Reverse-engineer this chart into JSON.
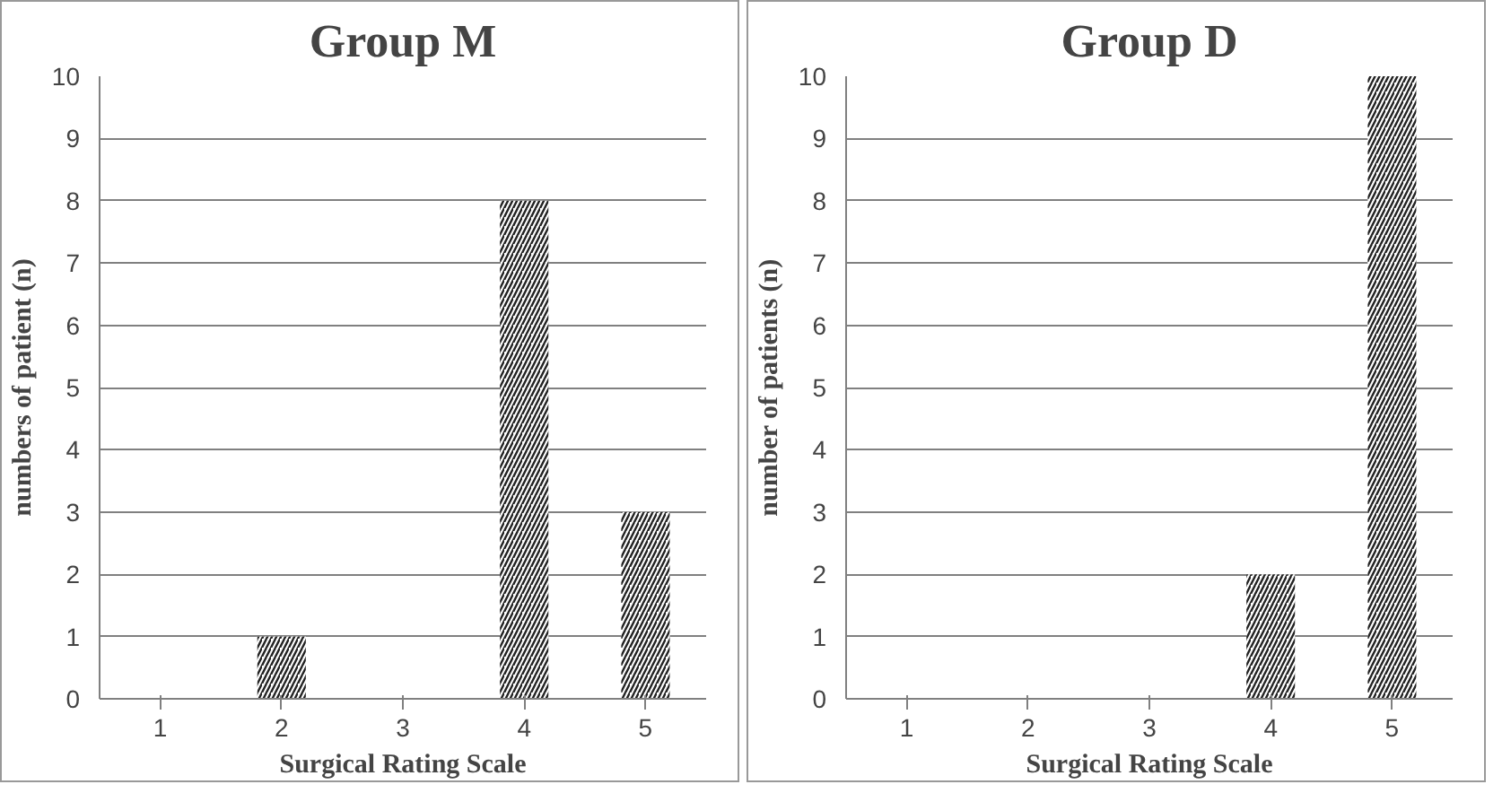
{
  "chart_data": [
    {
      "type": "bar",
      "title": "Group M",
      "xlabel": "Surgical Rating Scale",
      "ylabel": "numbers of patient (n)",
      "categories": [
        "1",
        "2",
        "3",
        "4",
        "5"
      ],
      "values": [
        0,
        1,
        0,
        8,
        3
      ],
      "color": "#222222",
      "ylim": [
        0,
        10
      ],
      "yticks": [
        0,
        1,
        2,
        3,
        4,
        5,
        6,
        7,
        8,
        9,
        10
      ],
      "grid": "y"
    },
    {
      "type": "bar",
      "title": "Group D",
      "xlabel": "Surgical Rating Scale",
      "ylabel": "number of patients (n)",
      "categories": [
        "1",
        "2",
        "3",
        "4",
        "5"
      ],
      "values": [
        0,
        0,
        0,
        2,
        10
      ],
      "color": "#222222",
      "ylim": [
        0,
        10
      ],
      "yticks": [
        0,
        1,
        2,
        3,
        4,
        5,
        6,
        7,
        8,
        9,
        10
      ],
      "grid": "y"
    }
  ]
}
